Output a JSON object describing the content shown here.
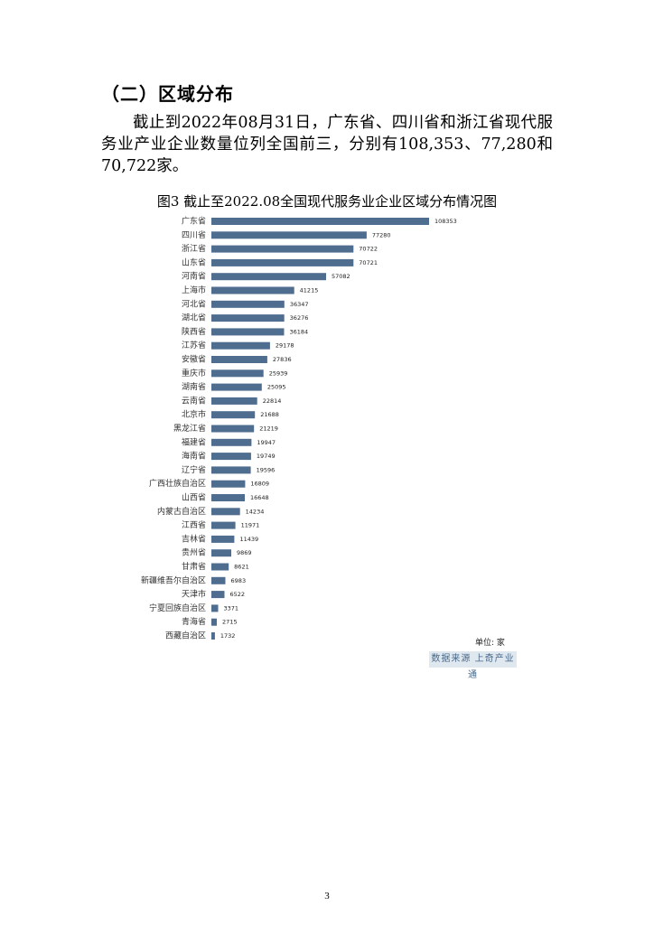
{
  "section_heading": "（二）区域分布",
  "paragraph": "截止到2022年08月31日，广东省、四川省和浙江省现代服务业产业企业数量位列全国前三，分别有108,353、77,280和70,722家。",
  "figure_title": "图3 截止至2022.08全国现代服务业企业区域分布情况图",
  "unit_label": "单位: 家",
  "source_label": "数据来源 上奇产业通",
  "page_number": "3",
  "chart_data": {
    "type": "bar",
    "orientation": "horizontal",
    "bar_color": "#4f6d8f",
    "categories": [
      "广东省",
      "四川省",
      "浙江省",
      "山东省",
      "河南省",
      "上海市",
      "河北省",
      "湖北省",
      "陕西省",
      "江苏省",
      "安徽省",
      "重庆市",
      "湖南省",
      "云南省",
      "北京市",
      "黑龙江省",
      "福建省",
      "海南省",
      "辽宁省",
      "广西壮族自治区",
      "山西省",
      "内蒙古自治区",
      "江西省",
      "吉林省",
      "贵州省",
      "甘肃省",
      "新疆维吾尔自治区",
      "天津市",
      "宁夏回族自治区",
      "青海省",
      "西藏自治区"
    ],
    "values": [
      108353,
      77280,
      70722,
      70721,
      57082,
      41215,
      36347,
      36276,
      36184,
      29178,
      27836,
      25939,
      25095,
      22814,
      21688,
      21219,
      19947,
      19749,
      19596,
      16809,
      16648,
      14234,
      11971,
      11439,
      9869,
      8621,
      6983,
      6522,
      3371,
      2715,
      1732
    ]
  }
}
